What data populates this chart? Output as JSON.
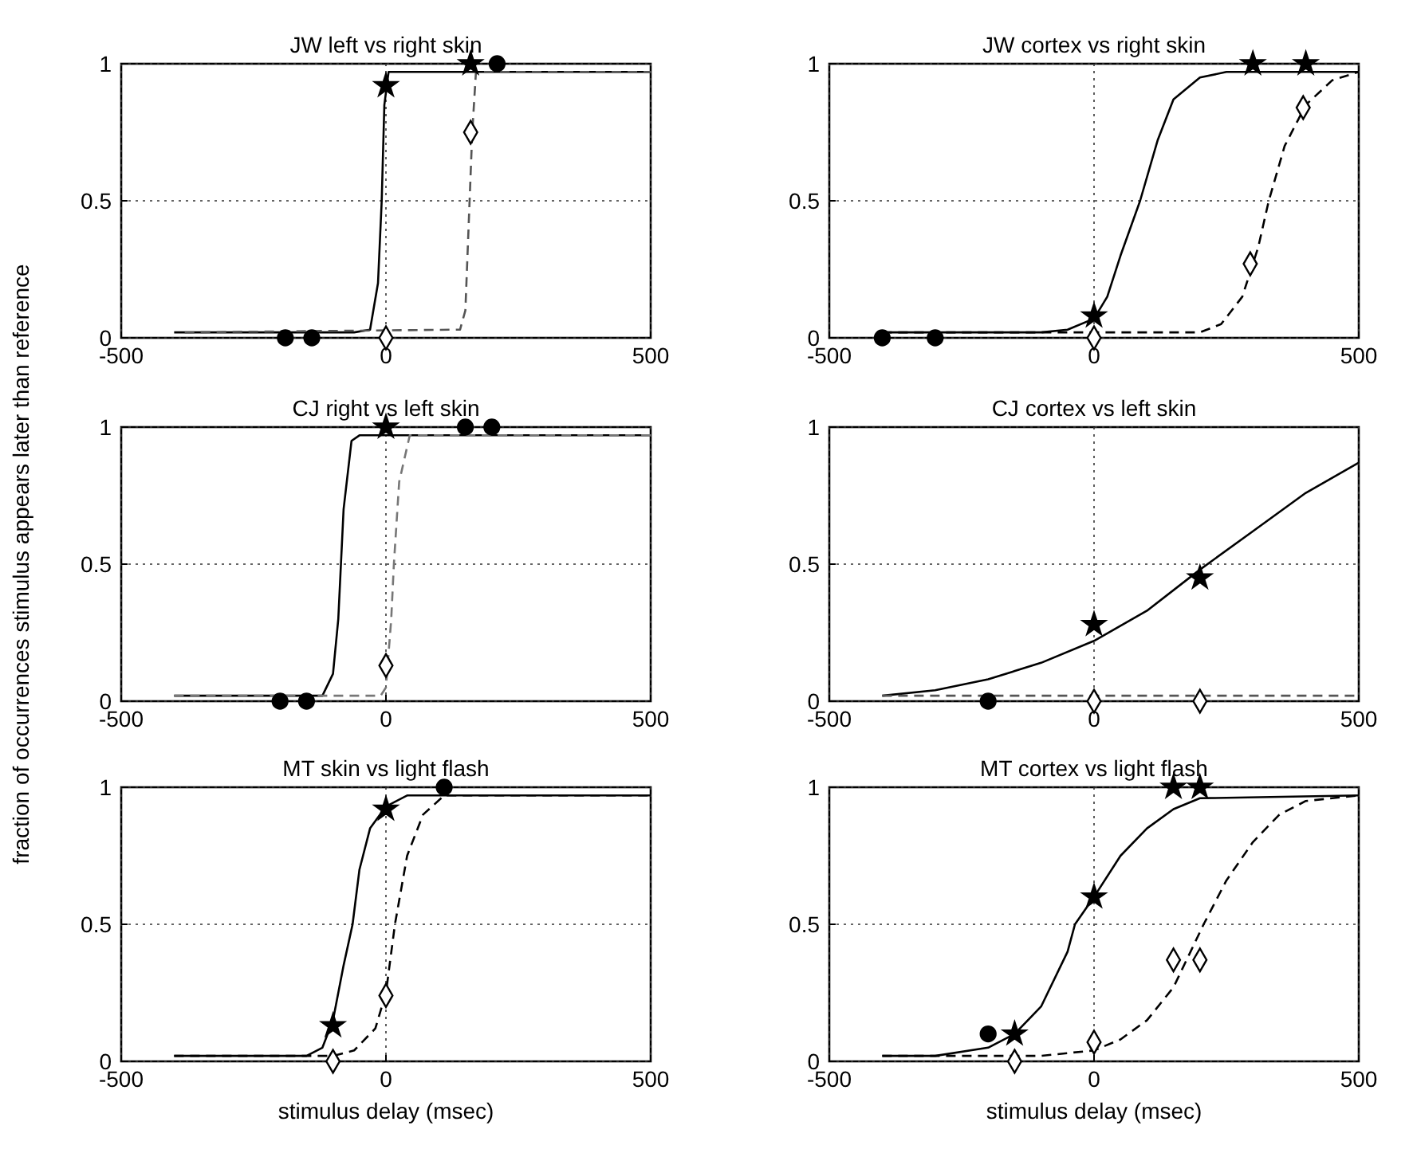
{
  "chart_data": [
    {
      "type": "line",
      "title": "JW left vs right skin",
      "xlim": [
        -500,
        500
      ],
      "ylim": [
        0,
        1
      ],
      "xticks": [
        -500,
        0,
        500
      ],
      "yticks": [
        0,
        0.5,
        1
      ],
      "grid": true,
      "series": [
        {
          "type": "line",
          "color": "#000000",
          "line_style": "solid",
          "marker": "none",
          "x": [
            -400,
            -60,
            -30,
            -15,
            -8,
            -3,
            5,
            500
          ],
          "values": [
            0.02,
            0.02,
            0.03,
            0.2,
            0.5,
            0.85,
            0.97,
            0.97
          ]
        },
        {
          "type": "line",
          "color": "#555555",
          "line_style": "dashed",
          "marker": "none",
          "x": [
            -380,
            140,
            150,
            158,
            163,
            170,
            500
          ],
          "values": [
            0.02,
            0.03,
            0.1,
            0.5,
            0.75,
            0.97,
            0.97
          ]
        },
        {
          "type": "scatter",
          "color": "#000000",
          "marker": "star",
          "x": [
            0,
            160
          ],
          "values": [
            0.92,
            1
          ]
        },
        {
          "type": "scatter",
          "color": "#000000",
          "marker": "diamond",
          "x": [
            0,
            160
          ],
          "values": [
            0,
            0.75
          ]
        },
        {
          "type": "scatter",
          "color": "#000000",
          "marker": "circle",
          "x": [
            -190,
            -140,
            210
          ],
          "values": [
            0,
            0,
            1
          ]
        }
      ]
    },
    {
      "type": "line",
      "title": "JW cortex vs right skin",
      "xlim": [
        -500,
        500
      ],
      "ylim": [
        0,
        1
      ],
      "xticks": [
        -500,
        0,
        500
      ],
      "yticks": [
        0,
        0.5,
        1
      ],
      "grid": true,
      "series": [
        {
          "type": "line",
          "color": "#000000",
          "line_style": "solid",
          "marker": "none",
          "x": [
            -400,
            -100,
            -50,
            0,
            25,
            50,
            87,
            120,
            150,
            200,
            250,
            500
          ],
          "values": [
            0.02,
            0.02,
            0.03,
            0.07,
            0.15,
            0.3,
            0.5,
            0.72,
            0.87,
            0.95,
            0.97,
            0.97
          ]
        },
        {
          "type": "line",
          "color": "#000000",
          "line_style": "dashed",
          "marker": "none",
          "x": [
            -400,
            200,
            240,
            280,
            310,
            330,
            360,
            400,
            450,
            500
          ],
          "values": [
            0.02,
            0.02,
            0.05,
            0.15,
            0.33,
            0.5,
            0.7,
            0.85,
            0.94,
            0.97
          ]
        },
        {
          "type": "scatter",
          "color": "#000000",
          "marker": "star",
          "x": [
            0,
            300,
            400
          ],
          "values": [
            0.08,
            1,
            1
          ]
        },
        {
          "type": "scatter",
          "color": "#000000",
          "marker": "diamond",
          "x": [
            0,
            295,
            395
          ],
          "values": [
            0,
            0.27,
            0.84
          ]
        },
        {
          "type": "scatter",
          "color": "#000000",
          "marker": "circle",
          "x": [
            -400,
            -300
          ],
          "values": [
            0,
            0
          ]
        }
      ]
    },
    {
      "type": "line",
      "title": "CJ right vs left skin",
      "ylabel": "fraction of occurrences stimulus appears later than reference",
      "xlim": [
        -500,
        500
      ],
      "ylim": [
        0,
        1
      ],
      "xticks": [
        -500,
        0,
        500
      ],
      "yticks": [
        0,
        0.5,
        1
      ],
      "grid": true,
      "series": [
        {
          "type": "line",
          "color": "#000000",
          "line_style": "solid",
          "marker": "none",
          "x": [
            -400,
            -120,
            -100,
            -90,
            -80,
            -65,
            -50,
            500
          ],
          "values": [
            0.02,
            0.02,
            0.1,
            0.3,
            0.7,
            0.95,
            0.97,
            0.97
          ]
        },
        {
          "type": "line",
          "color": "#777777",
          "line_style": "dashed",
          "marker": "none",
          "x": [
            -400,
            -10,
            0,
            10,
            15,
            25,
            45,
            500
          ],
          "values": [
            0.02,
            0.02,
            0.05,
            0.3,
            0.5,
            0.8,
            0.97,
            0.97
          ]
        },
        {
          "type": "scatter",
          "color": "#000000",
          "marker": "star",
          "x": [
            0
          ],
          "values": [
            1
          ]
        },
        {
          "type": "scatter",
          "color": "#000000",
          "marker": "diamond",
          "x": [
            0
          ],
          "values": [
            0.13
          ]
        },
        {
          "type": "scatter",
          "color": "#000000",
          "marker": "circle",
          "x": [
            -200,
            -150,
            150,
            200
          ],
          "values": [
            0,
            0,
            1,
            1
          ]
        }
      ]
    },
    {
      "type": "line",
      "title": "CJ cortex vs left skin",
      "xlim": [
        -500,
        500
      ],
      "ylim": [
        0,
        1
      ],
      "xticks": [
        -500,
        0,
        500
      ],
      "yticks": [
        0,
        0.5,
        1
      ],
      "grid": true,
      "series": [
        {
          "type": "line",
          "color": "#000000",
          "line_style": "solid",
          "marker": "none",
          "x": [
            -400,
            -300,
            -200,
            -100,
            0,
            100,
            200,
            300,
            400,
            500
          ],
          "values": [
            0.02,
            0.04,
            0.08,
            0.14,
            0.22,
            0.33,
            0.48,
            0.62,
            0.76,
            0.87
          ]
        },
        {
          "type": "line",
          "color": "#555555",
          "line_style": "dashed",
          "marker": "none",
          "x": [
            -400,
            500
          ],
          "values": [
            0.02,
            0.02
          ]
        },
        {
          "type": "scatter",
          "color": "#000000",
          "marker": "star",
          "x": [
            0,
            200
          ],
          "values": [
            0.28,
            0.45
          ]
        },
        {
          "type": "scatter",
          "color": "#000000",
          "marker": "diamond",
          "x": [
            0,
            200
          ],
          "values": [
            0,
            0
          ]
        },
        {
          "type": "scatter",
          "color": "#000000",
          "marker": "circle",
          "x": [
            -200
          ],
          "values": [
            0
          ]
        }
      ]
    },
    {
      "type": "line",
      "title": "MT skin vs light flash",
      "xlabel": "stimulus delay (msec)",
      "xlim": [
        -500,
        500
      ],
      "ylim": [
        0,
        1
      ],
      "xticks": [
        -500,
        0,
        500
      ],
      "yticks": [
        0,
        0.5,
        1
      ],
      "grid": true,
      "series": [
        {
          "type": "line",
          "color": "#000000",
          "line_style": "solid",
          "marker": "none",
          "x": [
            -400,
            -150,
            -120,
            -100,
            -80,
            -63,
            -50,
            -30,
            0,
            40,
            500
          ],
          "values": [
            0.02,
            0.02,
            0.05,
            0.15,
            0.35,
            0.5,
            0.7,
            0.85,
            0.93,
            0.97,
            0.97
          ]
        },
        {
          "type": "line",
          "color": "#000000",
          "line_style": "dashed",
          "marker": "none",
          "x": [
            -400,
            -100,
            -60,
            -20,
            0,
            17,
            40,
            70,
            110,
            500
          ],
          "values": [
            0.02,
            0.02,
            0.04,
            0.12,
            0.25,
            0.5,
            0.75,
            0.9,
            0.97,
            0.97
          ]
        },
        {
          "type": "scatter",
          "color": "#000000",
          "marker": "star",
          "x": [
            -100,
            0
          ],
          "values": [
            0.13,
            0.92
          ]
        },
        {
          "type": "scatter",
          "color": "#000000",
          "marker": "diamond",
          "x": [
            -100,
            0
          ],
          "values": [
            0,
            0.24
          ]
        },
        {
          "type": "scatter",
          "color": "#000000",
          "marker": "circle",
          "x": [
            110
          ],
          "values": [
            1
          ]
        }
      ]
    },
    {
      "type": "line",
      "title": "MT cortex vs light flash",
      "xlabel": "stimulus delay (msec)",
      "xlim": [
        -500,
        500
      ],
      "ylim": [
        0,
        1
      ],
      "xticks": [
        -500,
        0,
        500
      ],
      "yticks": [
        0,
        0.5,
        1
      ],
      "grid": true,
      "series": [
        {
          "type": "line",
          "color": "#000000",
          "line_style": "solid",
          "marker": "none",
          "x": [
            -400,
            -300,
            -200,
            -150,
            -100,
            -50,
            -36,
            0,
            50,
            100,
            150,
            200,
            500
          ],
          "values": [
            0.02,
            0.02,
            0.05,
            0.1,
            0.2,
            0.4,
            0.5,
            0.6,
            0.75,
            0.85,
            0.92,
            0.96,
            0.97
          ]
        },
        {
          "type": "line",
          "color": "#000000",
          "line_style": "dashed",
          "marker": "none",
          "x": [
            -400,
            -100,
            0,
            50,
            100,
            150,
            207,
            250,
            300,
            350,
            400,
            500
          ],
          "values": [
            0.02,
            0.02,
            0.04,
            0.08,
            0.15,
            0.27,
            0.5,
            0.66,
            0.8,
            0.9,
            0.95,
            0.97
          ]
        },
        {
          "type": "scatter",
          "color": "#000000",
          "marker": "star",
          "x": [
            -150,
            0,
            150,
            200
          ],
          "values": [
            0.1,
            0.6,
            1,
            1
          ]
        },
        {
          "type": "scatter",
          "color": "#000000",
          "marker": "diamond",
          "x": [
            -150,
            0,
            150,
            200
          ],
          "values": [
            0,
            0.07,
            0.37,
            0.37
          ]
        },
        {
          "type": "scatter",
          "color": "#000000",
          "marker": "circle",
          "x": [
            -200
          ],
          "values": [
            0.1
          ]
        }
      ]
    }
  ]
}
